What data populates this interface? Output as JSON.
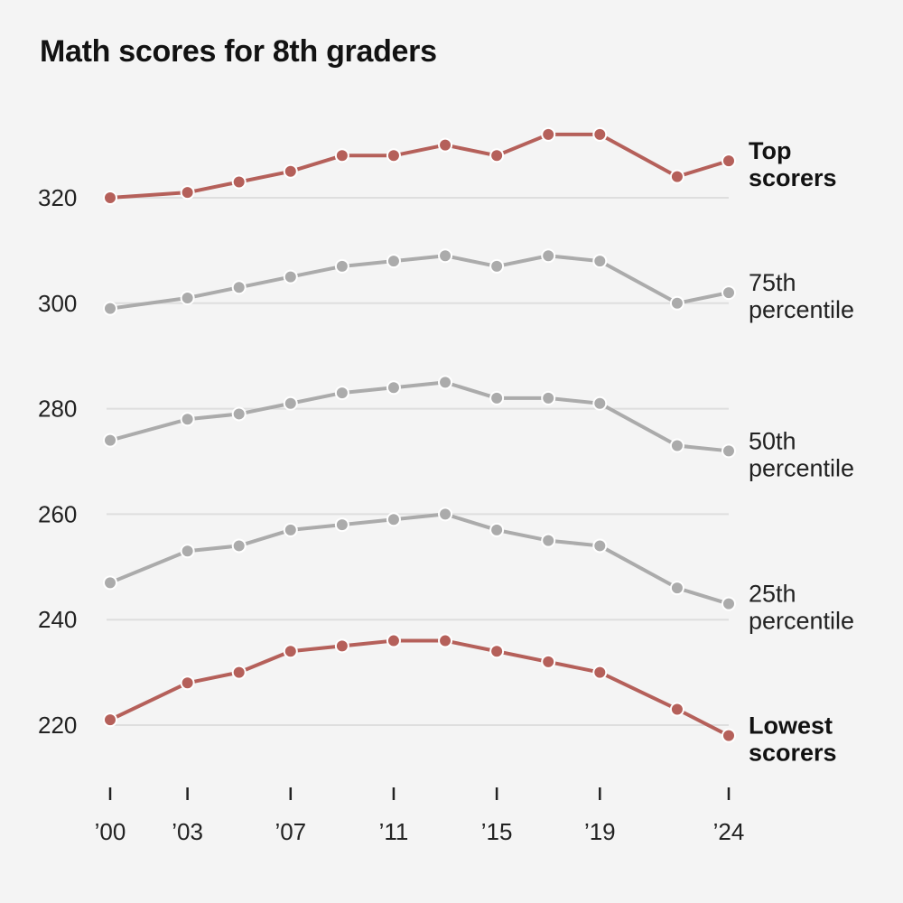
{
  "chart_data": {
    "type": "line",
    "title": "Math scores for 8th graders",
    "xlabel": "",
    "ylabel": "",
    "x": [
      2000,
      2003,
      2005,
      2007,
      2009,
      2011,
      2013,
      2015,
      2017,
      2019,
      2022,
      2024
    ],
    "x_tick_values": [
      2000,
      2003,
      2007,
      2011,
      2015,
      2019,
      2024
    ],
    "x_tick_labels": [
      "’00",
      "’03",
      "’07",
      "’11",
      "’15",
      "’19",
      "’24"
    ],
    "y_ticks": [
      220,
      240,
      260,
      280,
      300,
      320
    ],
    "ylim": [
      208,
      335
    ],
    "grid": true,
    "colors": {
      "highlight": "#b5605a",
      "muted": "#ababab",
      "grid": "#dedede",
      "text": "#222222"
    },
    "series": [
      {
        "name_lines": [
          "Top",
          "scorers"
        ],
        "emphasis": true,
        "values": [
          320,
          321,
          323,
          325,
          328,
          328,
          330,
          328,
          332,
          332,
          324,
          327
        ]
      },
      {
        "name_lines": [
          "75th",
          "percentile"
        ],
        "emphasis": false,
        "values": [
          299,
          301,
          303,
          305,
          307,
          308,
          309,
          307,
          309,
          308,
          300,
          302
        ]
      },
      {
        "name_lines": [
          "50th",
          "percentile"
        ],
        "emphasis": false,
        "values": [
          274,
          278,
          279,
          281,
          283,
          284,
          285,
          282,
          282,
          281,
          273,
          272
        ]
      },
      {
        "name_lines": [
          "25th",
          "percentile"
        ],
        "emphasis": false,
        "values": [
          247,
          253,
          254,
          257,
          258,
          259,
          260,
          257,
          255,
          254,
          246,
          243
        ]
      },
      {
        "name_lines": [
          "Lowest",
          "scorers"
        ],
        "emphasis": true,
        "values": [
          221,
          228,
          230,
          234,
          235,
          236,
          236,
          234,
          232,
          230,
          223,
          218
        ]
      }
    ]
  }
}
